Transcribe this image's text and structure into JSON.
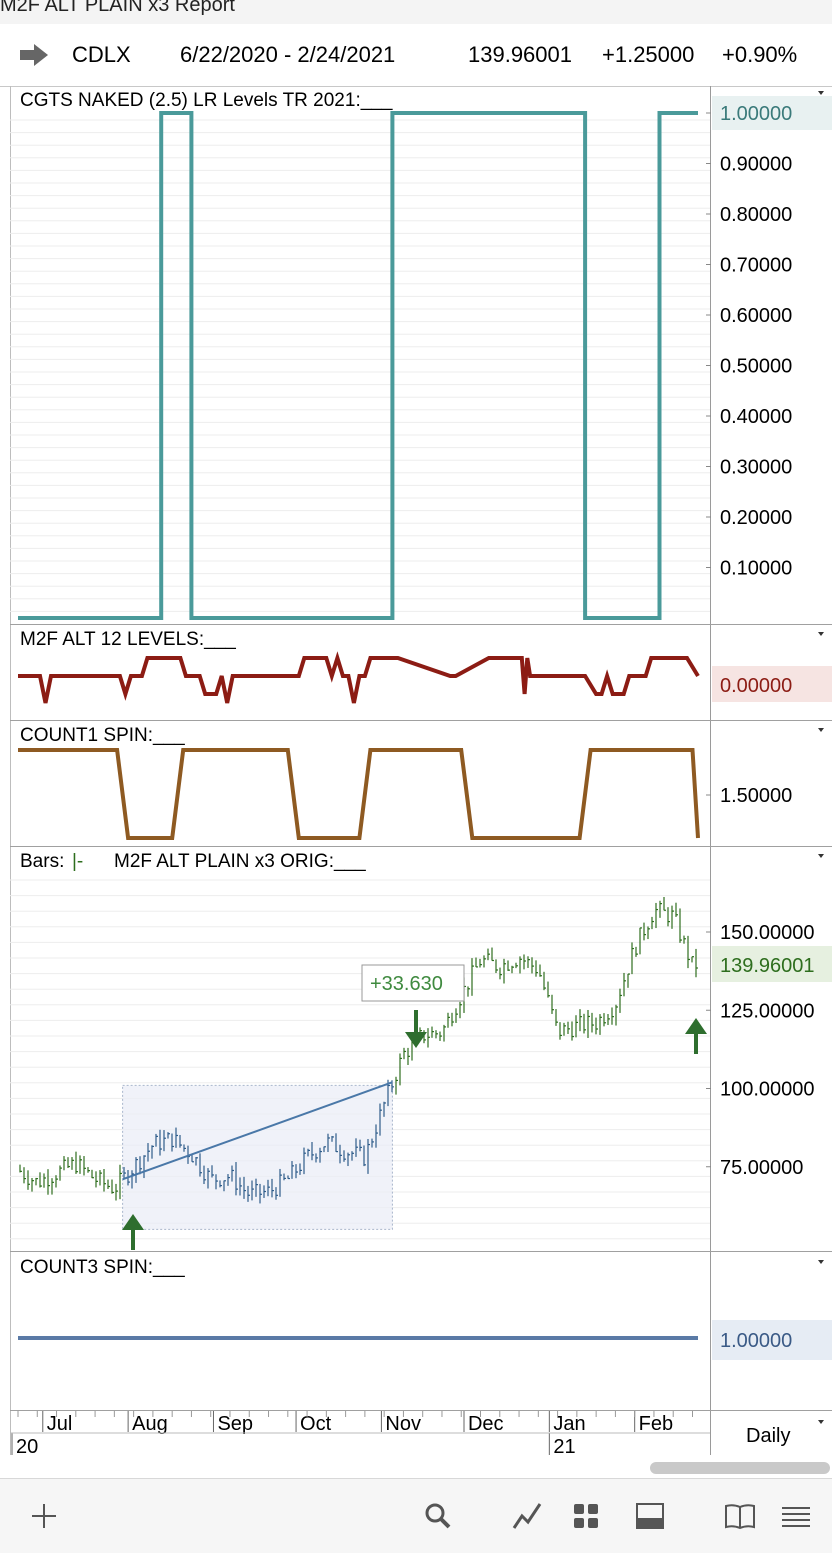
{
  "window": {
    "title": "M2F ALT PLAIN x3 Report"
  },
  "symbol_bar": {
    "symbol": "CDLX",
    "date_range": "6/22/2020 - 2/24/2021",
    "last_price": "139.96001",
    "change": "+1.25000",
    "change_pct": "+0.90%"
  },
  "colors": {
    "teal": "#4a9a9a",
    "dark_red": "#8c1c14",
    "brown": "#8e5a22",
    "green": "#2e6e1e",
    "blue": "#4a78a8",
    "count3": "#5a7aa6"
  },
  "panels": {
    "p1": {
      "title": "CGTS NAKED (2.5) LR Levels TR 2021:___",
      "current_value": "1.00000"
    },
    "p2": {
      "title": "M2F ALT 12 LEVELS:___",
      "current_value": "0.00000"
    },
    "p3": {
      "title": "COUNT1 SPIN:___",
      "label_value": "1.50000"
    },
    "p4": {
      "title_prefix": "Bars:",
      "title_bar_glyph": "|-",
      "title": "M2F ALT PLAIN x3 ORIG:___",
      "current_value": "139.96001",
      "measure_label": "+33.630"
    },
    "p5": {
      "title": "COUNT3 SPIN:___",
      "current_value": "1.00000"
    }
  },
  "time_axis": {
    "months": [
      "Jul",
      "Aug",
      "Sep",
      "Oct",
      "Nov",
      "Dec",
      "Jan",
      "Feb"
    ],
    "years": [
      "20",
      "21"
    ],
    "period": "Daily"
  },
  "chart_data": [
    {
      "type": "line",
      "title": "CGTS NAKED (2.5) LR Levels TR 2021:___",
      "yticks": [
        "1.00000",
        "0.90000",
        "0.80000",
        "0.70000",
        "0.60000",
        "0.50000",
        "0.40000",
        "0.30000",
        "0.20000",
        "0.10000"
      ],
      "ylim": [
        0,
        1
      ],
      "x": [
        "2020-06-22",
        "2020-08-13",
        "2020-08-24",
        "2020-11-05",
        "2021-01-14",
        "2021-02-10",
        "2021-02-24"
      ],
      "values": [
        0,
        1,
        0,
        1,
        0,
        1,
        1
      ]
    },
    {
      "type": "line",
      "title": "M2F ALT 12 LEVELS:___",
      "yticks": [
        "0.00000"
      ],
      "x": [
        "2020-06-22",
        "2020-06-30",
        "2020-07-02",
        "2020-07-04",
        "2020-07-29",
        "2020-07-31",
        "2020-08-02",
        "2020-08-06",
        "2020-08-08",
        "2020-08-20",
        "2020-08-22",
        "2020-08-27",
        "2020-08-29",
        "2020-09-02",
        "2020-09-04",
        "2020-09-06",
        "2020-09-08",
        "2020-09-10",
        "2020-09-12",
        "2020-09-14",
        "2020-09-16",
        "2020-10-02",
        "2020-10-04",
        "2020-10-12",
        "2020-10-14",
        "2020-10-16",
        "2020-10-18",
        "2020-10-20",
        "2020-10-22",
        "2020-10-24",
        "2020-10-26",
        "2020-10-28",
        "2020-10-30",
        "2020-11-05",
        "2020-11-07",
        "2020-11-26",
        "2020-11-28",
        "2020-12-10",
        "2020-12-12",
        "2020-12-22",
        "2020-12-23",
        "2020-12-24",
        "2020-12-25",
        "2020-12-26",
        "2021-01-12",
        "2021-01-14",
        "2021-01-18",
        "2021-01-20",
        "2021-01-22",
        "2021-01-24",
        "2021-01-28",
        "2021-01-30",
        "2021-02-05",
        "2021-02-07",
        "2021-02-20",
        "2021-02-24"
      ],
      "values": [
        0.5,
        0.5,
        -1,
        0.5,
        0.5,
        -0.5,
        0.5,
        0.5,
        1.5,
        1.5,
        0.5,
        0.5,
        -0.5,
        -0.5,
        0.5,
        -1,
        0.5,
        0.5,
        0.5,
        0.5,
        0.5,
        0.5,
        1.5,
        1.5,
        0.5,
        1.5,
        0.5,
        0.5,
        -1,
        0.5,
        0.5,
        1.5,
        1.5,
        1.5,
        1.5,
        0.5,
        0.5,
        1.5,
        1.5,
        1.5,
        -0.5,
        1.5,
        0.5,
        0.5,
        0.5,
        0.5,
        -0.5,
        -0.5,
        0.5,
        -0.5,
        -0.5,
        0.5,
        0.5,
        1.5,
        1.5,
        0.5
      ]
    },
    {
      "type": "line",
      "title": "COUNT1 SPIN:___",
      "yticks": [
        "1.50000"
      ],
      "x": [
        "2020-06-22",
        "2020-07-28",
        "2020-08-01",
        "2020-08-17",
        "2020-08-21",
        "2020-09-28",
        "2020-10-02",
        "2020-10-24",
        "2020-10-28",
        "2020-11-30",
        "2020-12-04",
        "2021-01-12",
        "2021-01-16",
        "2021-02-22",
        "2021-02-24"
      ],
      "values": [
        2,
        2,
        1,
        1,
        2,
        2,
        1,
        1,
        2,
        2,
        1,
        1,
        2,
        2,
        1
      ]
    },
    {
      "type": "bar",
      "title": "M2F ALT PLAIN x3 ORIG:___",
      "yticks": [
        "150.00000",
        "125.00000",
        "100.00000",
        "75.00000"
      ],
      "ylim": [
        55,
        170
      ],
      "x": [
        "2020-06-22",
        "2020-06-29",
        "2020-07-06",
        "2020-07-13",
        "2020-07-20",
        "2020-07-27",
        "2020-08-03",
        "2020-08-10",
        "2020-08-17",
        "2020-08-24",
        "2020-08-31",
        "2020-09-07",
        "2020-09-14",
        "2020-09-21",
        "2020-09-28",
        "2020-10-05",
        "2020-10-12",
        "2020-10-19",
        "2020-10-26",
        "2020-11-02",
        "2020-11-09",
        "2020-11-16",
        "2020-11-23",
        "2020-11-30",
        "2020-12-07",
        "2020-12-14",
        "2020-12-21",
        "2020-12-28",
        "2021-01-04",
        "2021-01-11",
        "2021-01-18",
        "2021-01-25",
        "2021-02-01",
        "2021-02-08",
        "2021-02-15",
        "2021-02-22",
        "2021-02-24"
      ],
      "values": [
        74,
        70,
        73,
        76,
        71,
        68,
        75,
        82,
        84,
        79,
        71,
        72,
        66,
        67,
        71,
        78,
        83,
        80,
        78,
        95,
        111,
        117,
        118,
        130,
        141,
        139,
        142,
        138,
        118,
        120,
        121,
        127,
        145,
        157,
        155,
        139,
        139.96
      ]
    },
    {
      "type": "line",
      "title": "COUNT3 SPIN:___",
      "yticks": [
        "1.00000"
      ],
      "x": [
        "2020-06-22",
        "2021-02-24"
      ],
      "values": [
        1,
        1
      ]
    }
  ]
}
